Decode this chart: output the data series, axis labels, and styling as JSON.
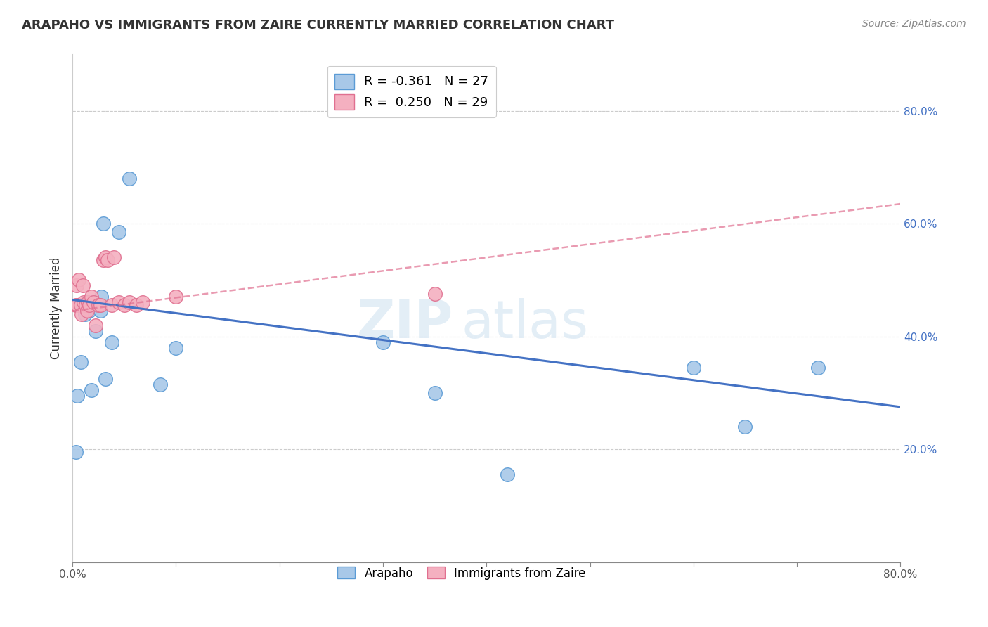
{
  "title": "ARAPAHO VS IMMIGRANTS FROM ZAIRE CURRENTLY MARRIED CORRELATION CHART",
  "source": "Source: ZipAtlas.com",
  "ylabel": "Currently Married",
  "xlim": [
    0.0,
    0.8
  ],
  "ylim": [
    0.0,
    0.9
  ],
  "x_ticks": [
    0.0,
    0.1,
    0.2,
    0.3,
    0.4,
    0.5,
    0.6,
    0.7,
    0.8
  ],
  "x_tick_labels": [
    "0.0%",
    "",
    "",
    "",
    "",
    "",
    "",
    "",
    "80.0%"
  ],
  "y_ticks_right": [
    0.2,
    0.4,
    0.6,
    0.8
  ],
  "arapaho_color": "#a8c8e8",
  "arapaho_edge_color": "#5b9bd5",
  "zaire_color": "#f4b0c0",
  "zaire_edge_color": "#e07090",
  "blue_line_color": "#4472c4",
  "pink_line_color": "#e07090",
  "legend_R_arapaho": "R = -0.361",
  "legend_N_arapaho": "N = 27",
  "legend_R_zaire": "R =  0.250",
  "legend_N_zaire": "N = 29",
  "watermark_zip": "ZIP",
  "watermark_atlas": "atlas",
  "arapaho_x": [
    0.003,
    0.005,
    0.008,
    0.009,
    0.01,
    0.012,
    0.014,
    0.016,
    0.018,
    0.02,
    0.022,
    0.025,
    0.027,
    0.028,
    0.03,
    0.032,
    0.038,
    0.045,
    0.055,
    0.085,
    0.1,
    0.3,
    0.35,
    0.42,
    0.6,
    0.65,
    0.72
  ],
  "arapaho_y": [
    0.195,
    0.295,
    0.355,
    0.455,
    0.455,
    0.44,
    0.46,
    0.445,
    0.305,
    0.46,
    0.41,
    0.455,
    0.445,
    0.47,
    0.6,
    0.325,
    0.39,
    0.585,
    0.68,
    0.315,
    0.38,
    0.39,
    0.3,
    0.155,
    0.345,
    0.24,
    0.345
  ],
  "zaire_x": [
    0.003,
    0.004,
    0.005,
    0.006,
    0.008,
    0.009,
    0.01,
    0.011,
    0.013,
    0.014,
    0.015,
    0.016,
    0.018,
    0.02,
    0.022,
    0.025,
    0.027,
    0.03,
    0.032,
    0.034,
    0.038,
    0.04,
    0.045,
    0.05,
    0.055,
    0.062,
    0.068,
    0.1,
    0.35
  ],
  "zaire_y": [
    0.455,
    0.49,
    0.455,
    0.5,
    0.455,
    0.44,
    0.49,
    0.46,
    0.455,
    0.445,
    0.46,
    0.455,
    0.47,
    0.46,
    0.42,
    0.455,
    0.455,
    0.535,
    0.54,
    0.535,
    0.455,
    0.54,
    0.46,
    0.455,
    0.46,
    0.455,
    0.46,
    0.47,
    0.475
  ],
  "blue_line_x": [
    0.0,
    0.8
  ],
  "blue_line_y_start": 0.465,
  "blue_line_y_end": 0.275,
  "pink_line_x": [
    0.0,
    0.8
  ],
  "pink_line_y_start": 0.445,
  "pink_line_y_end": 0.635
}
